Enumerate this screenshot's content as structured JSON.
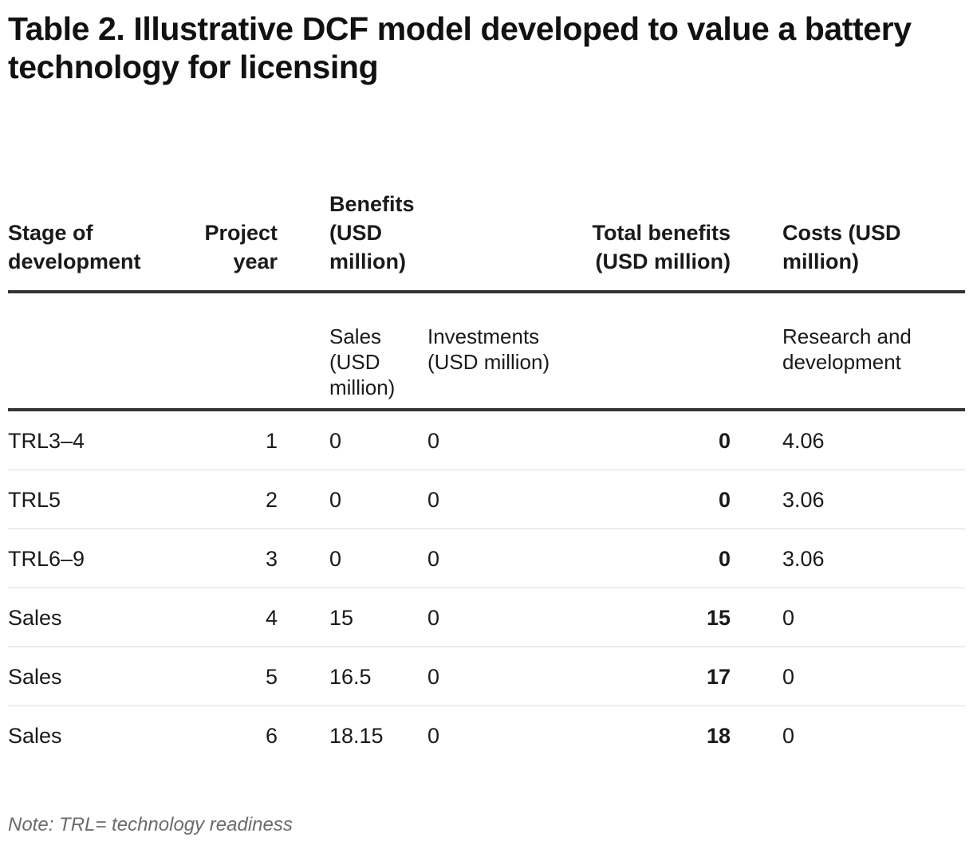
{
  "title": "Table 2. Illustrative DCF model developed to value a battery technology for licensing",
  "table": {
    "header": {
      "stage": "Stage of development",
      "project_year": "Project year",
      "benefits": "Benefits (USD million)",
      "investments_blank": "",
      "total_benefits": "Total benefits (USD million)",
      "costs": "Costs (USD million)"
    },
    "subheader": {
      "stage": "",
      "project_year": "",
      "sales": "Sales (USD million)",
      "investments": "Investments (USD million)",
      "total_benefits": "",
      "research": "Research and development"
    },
    "rows": [
      {
        "stage": "TRL3–4",
        "year": "1",
        "sales": "0",
        "investments": "0",
        "total": "0",
        "rd": "4.06"
      },
      {
        "stage": "TRL5",
        "year": "2",
        "sales": "0",
        "investments": "0",
        "total": "0",
        "rd": "3.06"
      },
      {
        "stage": "TRL6–9",
        "year": "3",
        "sales": "0",
        "investments": "0",
        "total": "0",
        "rd": "3.06"
      },
      {
        "stage": "Sales",
        "year": "4",
        "sales": "15",
        "investments": "0",
        "total": "15",
        "rd": "0"
      },
      {
        "stage": "Sales",
        "year": "5",
        "sales": "16.5",
        "investments": "0",
        "total": "17",
        "rd": "0"
      },
      {
        "stage": "Sales",
        "year": "6",
        "sales": "18.15",
        "investments": "0",
        "total": "18",
        "rd": "0"
      }
    ]
  },
  "note": "Note: TRL= technology readiness"
}
